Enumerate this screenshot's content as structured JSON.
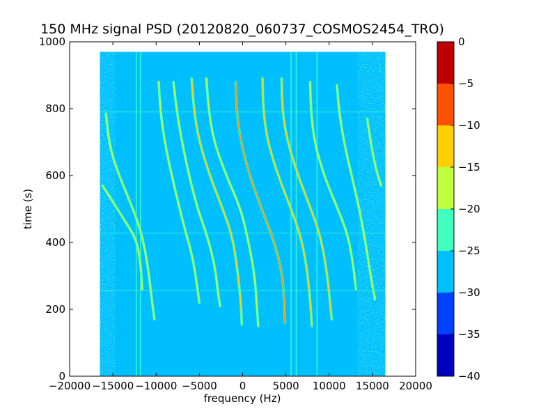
{
  "chart_data": {
    "type": "heatmap",
    "title": "150 MHz signal PSD (20120820_060737_COSMOS2454_TRO)",
    "xlabel": "frequency (Hz)",
    "ylabel": "time (s)",
    "xlim": [
      -20000,
      20000
    ],
    "ylim": [
      0,
      1000
    ],
    "x_ticks": [
      -20000,
      -15000,
      -10000,
      -5000,
      0,
      5000,
      10000,
      15000,
      20000
    ],
    "x_tick_labels": [
      "−20000",
      "−15000",
      "−10000",
      "−5000",
      "0",
      "5000",
      "10000",
      "15000",
      "20000"
    ],
    "y_ticks": [
      0,
      200,
      400,
      600,
      800,
      1000
    ],
    "y_tick_labels": [
      "0",
      "200",
      "400",
      "600",
      "800",
      "1000"
    ],
    "data_extent": {
      "x": [
        -16500,
        16500
      ],
      "y": [
        0,
        970
      ]
    },
    "background_level": -27.5,
    "noise_edge_level": -22.5,
    "colorbar": {
      "levels": [
        -40,
        -35,
        -30,
        -25,
        -20,
        -15,
        -10,
        -5,
        0
      ],
      "tick_labels": [
        "−40",
        "−35",
        "−30",
        "−25",
        "−20",
        "−15",
        "−10",
        "−5",
        "0"
      ],
      "colors": [
        "#0000bf",
        "#0040ff",
        "#00bfff",
        "#40ffbf",
        "#bfff40",
        "#ffd000",
        "#ff5000",
        "#bf0000"
      ]
    },
    "vertical_lines": [
      {
        "x": -12300,
        "y0": 0,
        "y1": 970,
        "level": -22.5
      },
      {
        "x": -11800,
        "y0": 0,
        "y1": 970,
        "level": -22.5
      },
      {
        "x": 5600,
        "y0": 0,
        "y1": 970,
        "level": -22.5
      },
      {
        "x": 6200,
        "y0": 0,
        "y1": 970,
        "level": -22.5
      },
      {
        "x": 8600,
        "y0": 0,
        "y1": 970,
        "level": -22.5
      }
    ],
    "horizontal_lines": [
      {
        "y": 790,
        "level": -22.5
      },
      {
        "y": 428,
        "level": -22.5
      },
      {
        "y": 257,
        "level": -22.5
      }
    ],
    "traces": [
      {
        "points": [
          [
            -15800,
            785
          ],
          [
            -15400,
            690
          ],
          [
            -14500,
            615
          ],
          [
            -13000,
            520
          ],
          [
            -11800,
            440
          ],
          [
            -11000,
            340
          ],
          [
            -10500,
            230
          ],
          [
            -10200,
            170
          ]
        ],
        "level": -17.5
      },
      {
        "points": [
          [
            -16200,
            570
          ],
          [
            -15200,
            530
          ],
          [
            -13500,
            460
          ],
          [
            -12300,
            410
          ],
          [
            -11800,
            340
          ],
          [
            -11600,
            260
          ]
        ],
        "level": -17.5
      },
      {
        "points": [
          [
            -9700,
            880
          ],
          [
            -9500,
            790
          ],
          [
            -9000,
            700
          ],
          [
            -8200,
            600
          ],
          [
            -6800,
            450
          ],
          [
            -5700,
            350
          ],
          [
            -5000,
            220
          ]
        ],
        "level": -17.5
      },
      {
        "points": [
          [
            -8000,
            880
          ],
          [
            -7600,
            790
          ],
          [
            -7000,
            700
          ],
          [
            -6200,
            600
          ],
          [
            -5200,
            500
          ],
          [
            -4100,
            420
          ],
          [
            -3200,
            330
          ],
          [
            -2800,
            240
          ],
          [
            -2600,
            210
          ]
        ],
        "level": -17.5
      },
      {
        "points": [
          [
            -5900,
            890
          ],
          [
            -5600,
            790
          ],
          [
            -5000,
            700
          ],
          [
            -3800,
            600
          ],
          [
            -2300,
            500
          ],
          [
            -1200,
            420
          ],
          [
            -600,
            320
          ],
          [
            -200,
            220
          ],
          [
            -100,
            155
          ]
        ],
        "level": -12.5
      },
      {
        "points": [
          [
            -4200,
            890
          ],
          [
            -3900,
            790
          ],
          [
            -3300,
            700
          ],
          [
            -1900,
            600
          ],
          [
            -200,
            500
          ],
          [
            700,
            400
          ],
          [
            1400,
            300
          ],
          [
            1700,
            190
          ],
          [
            1800,
            150
          ]
        ],
        "level": -17.5
      },
      {
        "points": [
          [
            -800,
            880
          ],
          [
            -700,
            790
          ],
          [
            -200,
            700
          ],
          [
            800,
            600
          ],
          [
            2200,
            500
          ],
          [
            3400,
            420
          ],
          [
            4200,
            350
          ],
          [
            4700,
            280
          ],
          [
            4900,
            160
          ]
        ],
        "level": -7.5
      },
      {
        "points": [
          [
            2300,
            890
          ],
          [
            2400,
            790
          ],
          [
            2900,
            700
          ],
          [
            4100,
            600
          ],
          [
            5600,
            500
          ],
          [
            6700,
            420
          ],
          [
            7400,
            330
          ],
          [
            7800,
            230
          ],
          [
            8000,
            150
          ]
        ],
        "level": -12.5
      },
      {
        "points": [
          [
            4500,
            890
          ],
          [
            4600,
            790
          ],
          [
            5200,
            700
          ],
          [
            6400,
            600
          ],
          [
            7900,
            500
          ],
          [
            9100,
            410
          ],
          [
            9800,
            300
          ],
          [
            10100,
            220
          ],
          [
            10300,
            170
          ]
        ],
        "level": -12.5
      },
      {
        "points": [
          [
            7800,
            880
          ],
          [
            7900,
            790
          ],
          [
            8300,
            700
          ],
          [
            9400,
            600
          ],
          [
            11000,
            500
          ],
          [
            12200,
            420
          ],
          [
            12800,
            330
          ],
          [
            13100,
            260
          ]
        ],
        "level": -17.5
      },
      {
        "points": [
          [
            10900,
            870
          ],
          [
            11200,
            780
          ],
          [
            11800,
            690
          ],
          [
            12600,
            600
          ],
          [
            13500,
            500
          ],
          [
            14200,
            400
          ],
          [
            14800,
            300
          ],
          [
            15300,
            230
          ]
        ],
        "level": -17.5
      },
      {
        "points": [
          [
            14400,
            770
          ],
          [
            14800,
            700
          ],
          [
            15400,
            620
          ],
          [
            16000,
            570
          ]
        ],
        "level": -17.5
      }
    ]
  }
}
